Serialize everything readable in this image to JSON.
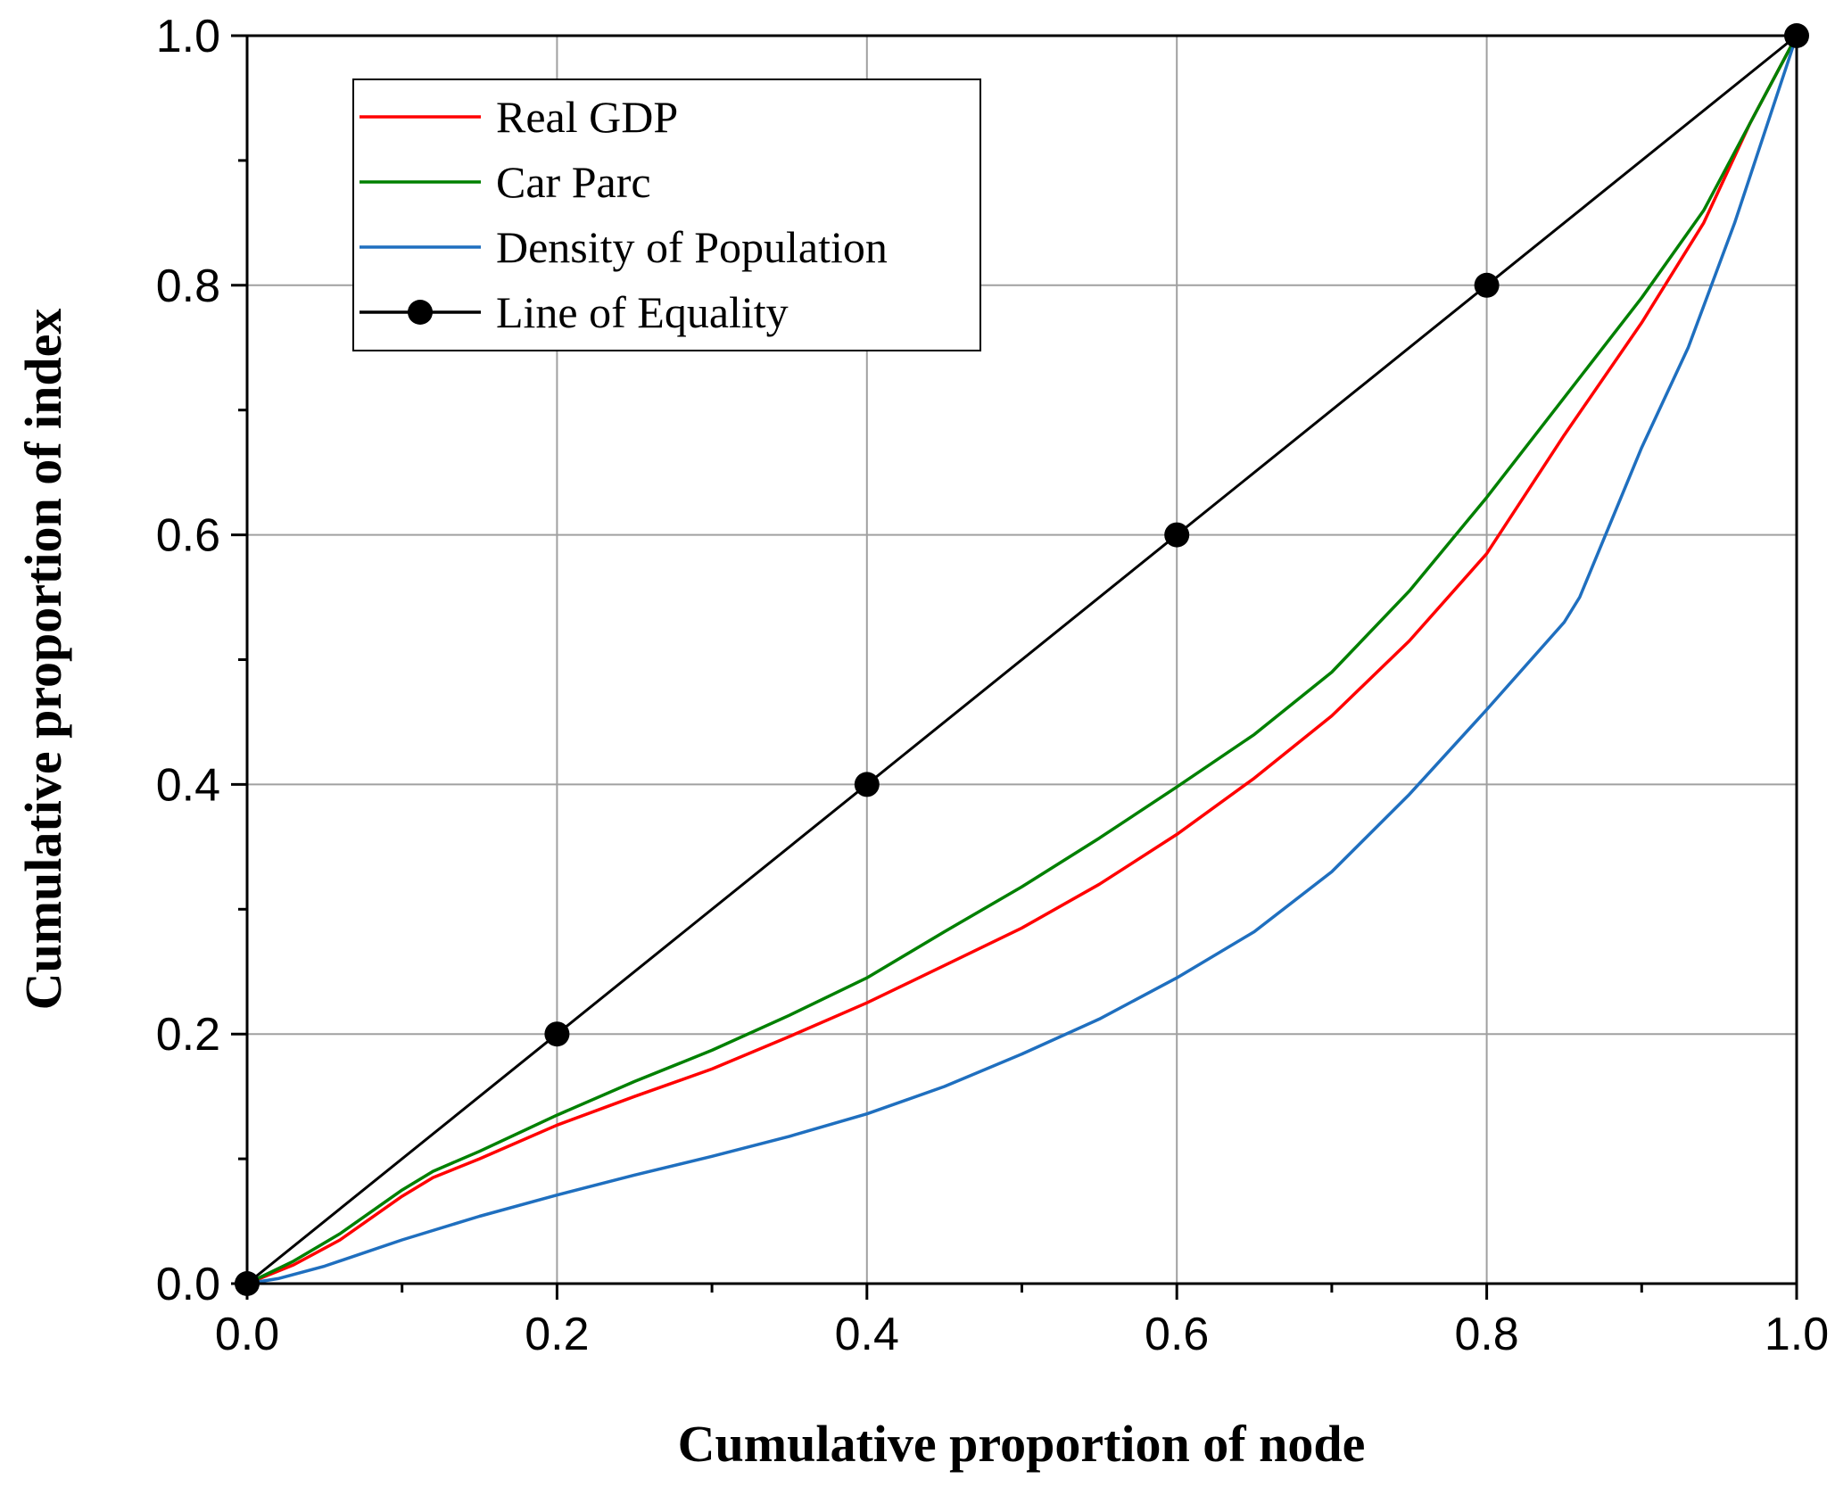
{
  "chart_data": {
    "type": "line",
    "title": "",
    "xlabel": "Cumulative proportion of node",
    "ylabel": "Cumulative proportion of index",
    "xlim": [
      0,
      1
    ],
    "ylim": [
      0,
      1
    ],
    "grid": true,
    "legend_position": "top-left",
    "x_ticks": [
      "0.0",
      "0.2",
      "0.4",
      "0.6",
      "0.8",
      "1.0"
    ],
    "y_ticks": [
      "0.0",
      "0.2",
      "0.4",
      "0.6",
      "0.8",
      "1.0"
    ],
    "series": [
      {
        "name": "Real GDP",
        "color": "#ff0000",
        "marker": "none",
        "x": [
          0,
          0.03,
          0.06,
          0.1,
          0.12,
          0.15,
          0.2,
          0.25,
          0.3,
          0.35,
          0.4,
          0.45,
          0.5,
          0.55,
          0.6,
          0.65,
          0.7,
          0.75,
          0.8,
          0.85,
          0.9,
          0.94,
          0.97,
          1.0
        ],
        "y": [
          0,
          0.015,
          0.035,
          0.07,
          0.085,
          0.1,
          0.127,
          0.15,
          0.172,
          0.198,
          0.225,
          0.255,
          0.285,
          0.32,
          0.36,
          0.405,
          0.455,
          0.515,
          0.585,
          0.68,
          0.77,
          0.85,
          0.93,
          1.0
        ]
      },
      {
        "name": "Car Parc",
        "color": "#008000",
        "marker": "none",
        "x": [
          0,
          0.03,
          0.06,
          0.1,
          0.12,
          0.15,
          0.2,
          0.25,
          0.3,
          0.35,
          0.4,
          0.45,
          0.5,
          0.55,
          0.6,
          0.65,
          0.7,
          0.75,
          0.8,
          0.85,
          0.9,
          0.94,
          0.97,
          1.0
        ],
        "y": [
          0,
          0.018,
          0.04,
          0.075,
          0.09,
          0.106,
          0.135,
          0.162,
          0.187,
          0.215,
          0.245,
          0.282,
          0.318,
          0.357,
          0.398,
          0.44,
          0.49,
          0.555,
          0.63,
          0.71,
          0.79,
          0.86,
          0.93,
          1.0
        ]
      },
      {
        "name": "Density of Population",
        "color": "#1f6fbf",
        "marker": "none",
        "x": [
          0,
          0.02,
          0.05,
          0.1,
          0.15,
          0.2,
          0.25,
          0.3,
          0.35,
          0.4,
          0.45,
          0.5,
          0.55,
          0.6,
          0.65,
          0.7,
          0.75,
          0.8,
          0.85,
          0.86,
          0.88,
          0.9,
          0.93,
          0.96,
          1.0
        ],
        "y": [
          0,
          0.004,
          0.014,
          0.035,
          0.054,
          0.071,
          0.087,
          0.102,
          0.118,
          0.136,
          0.158,
          0.184,
          0.212,
          0.245,
          0.282,
          0.33,
          0.392,
          0.46,
          0.53,
          0.55,
          0.61,
          0.67,
          0.75,
          0.85,
          1.0
        ]
      },
      {
        "name": "Line of Equality",
        "color": "#000000",
        "marker": "circle",
        "x": [
          0,
          0.2,
          0.4,
          0.6,
          0.8,
          1.0
        ],
        "y": [
          0,
          0.2,
          0.4,
          0.6,
          0.8,
          1.0
        ]
      }
    ]
  }
}
